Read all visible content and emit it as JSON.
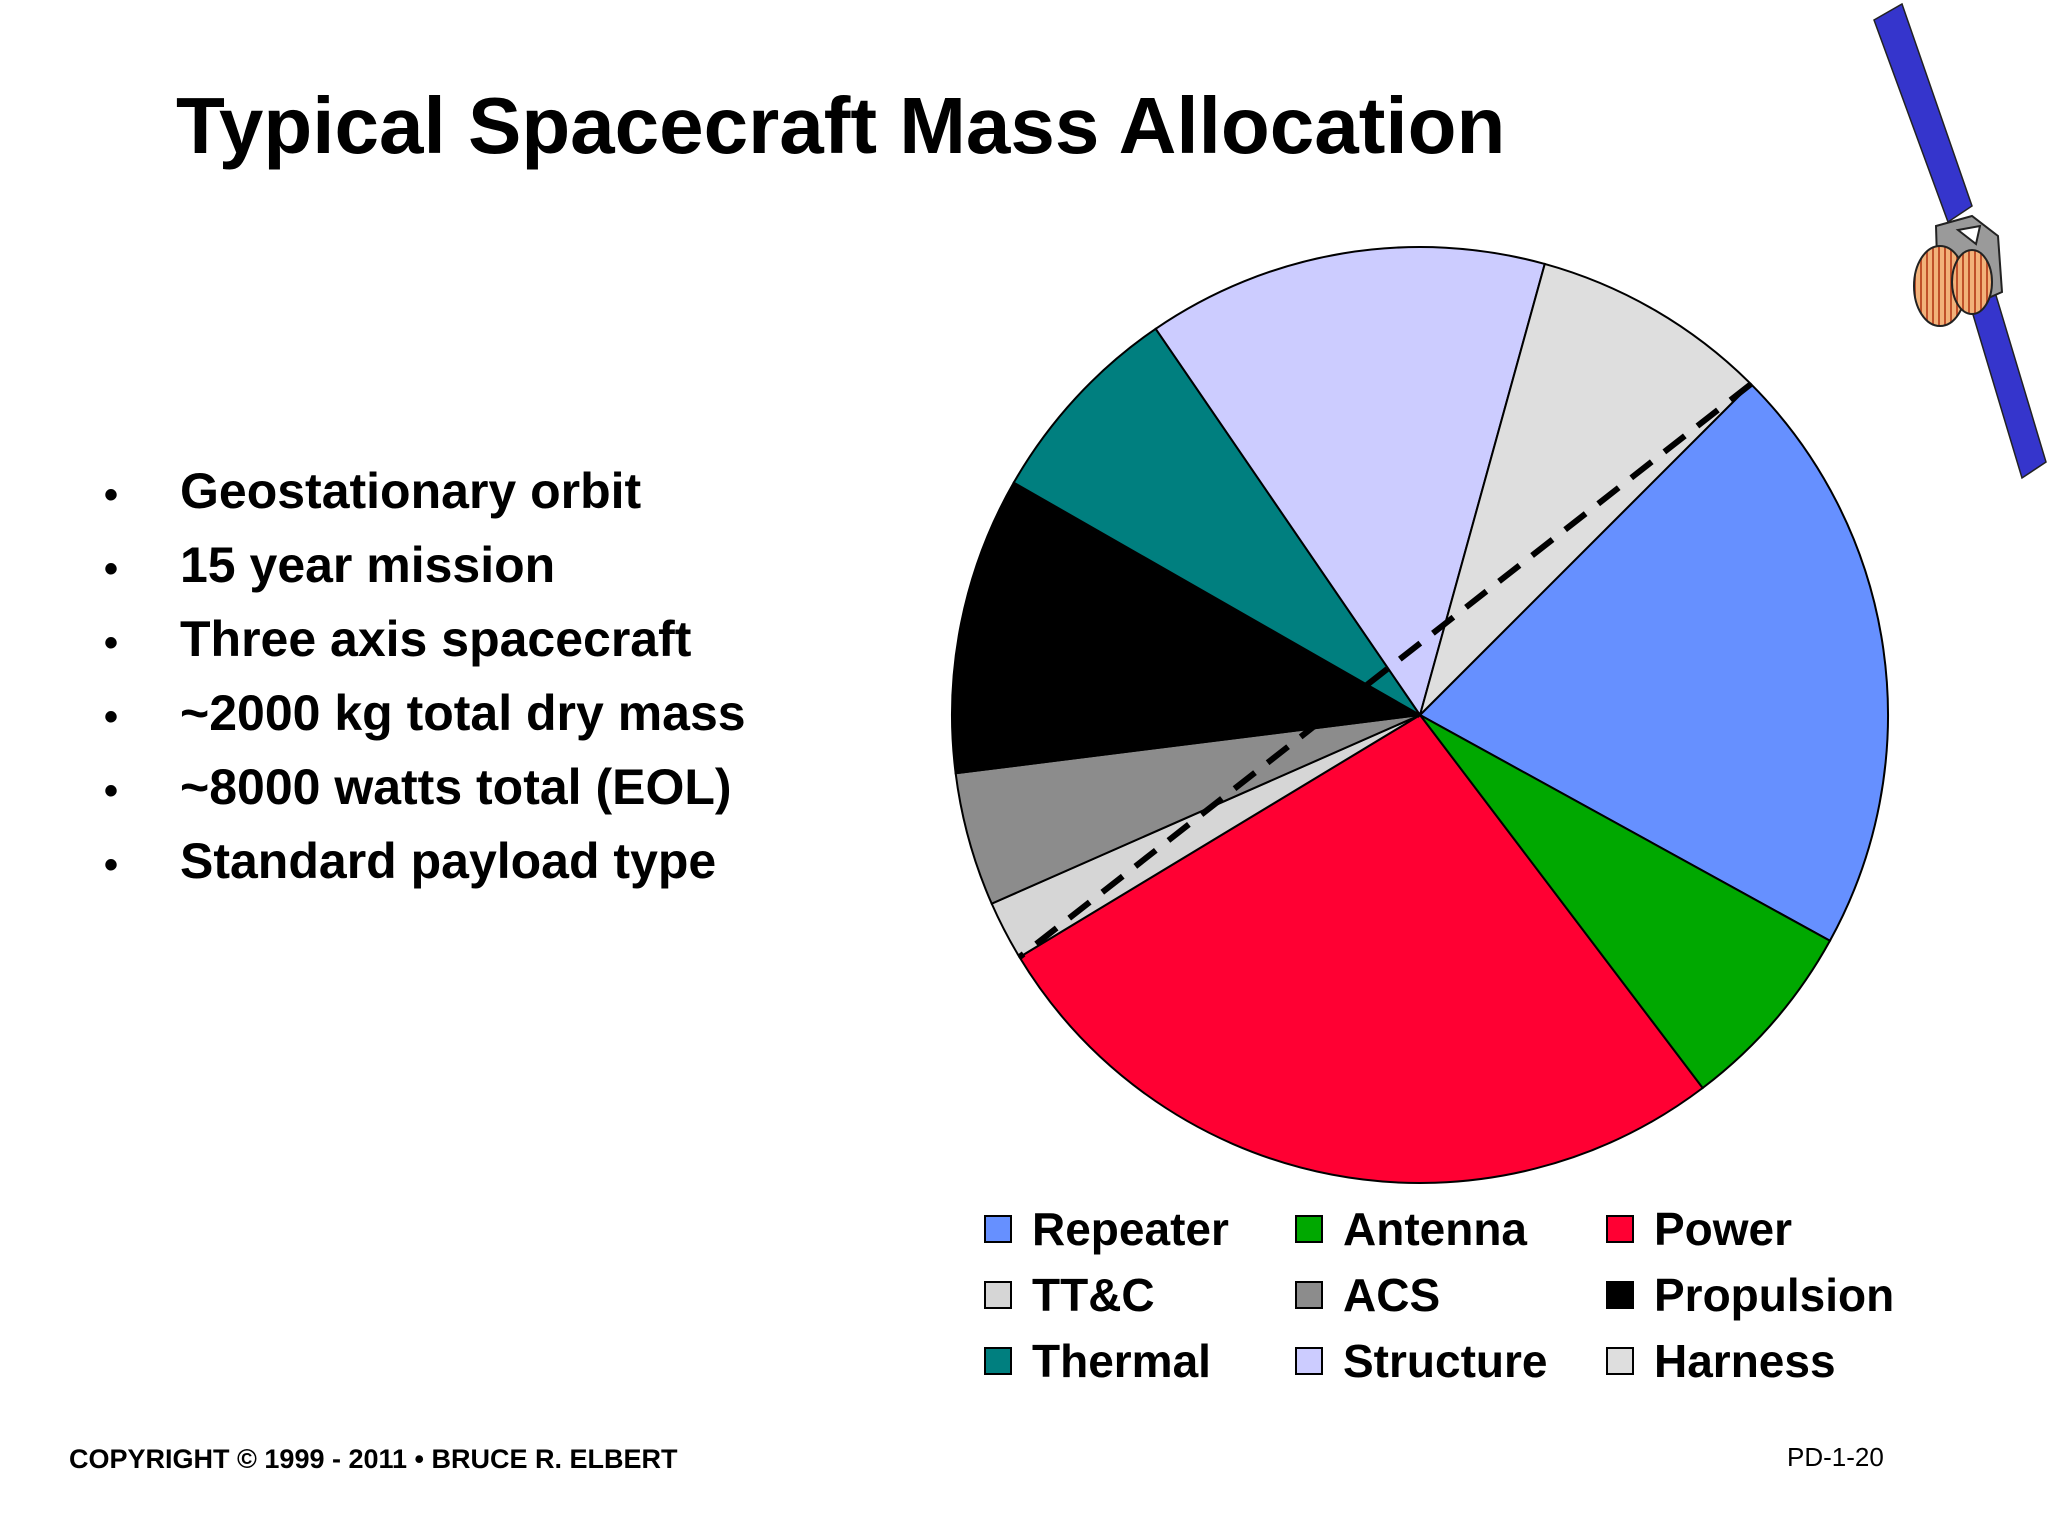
{
  "slide": {
    "title": "Typical Spacecraft Mass Allocation",
    "bullet_marker": "•",
    "bullets": [
      "Geostationary orbit",
      "15 year mission",
      "Three axis spacecraft",
      "~2000 kg total dry mass",
      "~8000 watts total (EOL)",
      "Standard payload type"
    ],
    "footer_copyright": "COPYRIGHT © 1999 - 2011 • BRUCE R. ELBERT",
    "page_id": "PD-1-20"
  },
  "chart_data": {
    "type": "pie",
    "title": "",
    "start_angle_deg": 45,
    "direction": "clockwise",
    "legend_position": "bottom",
    "slices": [
      {
        "label": "Repeater",
        "value": 20.0,
        "color": "#6690FF"
      },
      {
        "label": "Antenna",
        "value": 6.5,
        "color": "#00A800"
      },
      {
        "label": "Power",
        "value": 26.0,
        "color": "#FF0033"
      },
      {
        "label": "TT&C",
        "value": 2.0,
        "color": "#D6D6D6"
      },
      {
        "label": "ACS",
        "value": 4.5,
        "color": "#8C8C8C"
      },
      {
        "label": "Propulsion",
        "value": 10.0,
        "color": "#000000"
      },
      {
        "label": "Thermal",
        "value": 7.0,
        "color": "#007F7F"
      },
      {
        "label": "Structure",
        "value": 13.5,
        "color": "#CCCCFF"
      },
      {
        "label": "Harness",
        "value": 8.0,
        "color": "#DEDEDE"
      }
    ],
    "annotation": "dashed line through pie centre dividing the Repeater + Antenna + Power sectors from the remaining bus sectors"
  }
}
